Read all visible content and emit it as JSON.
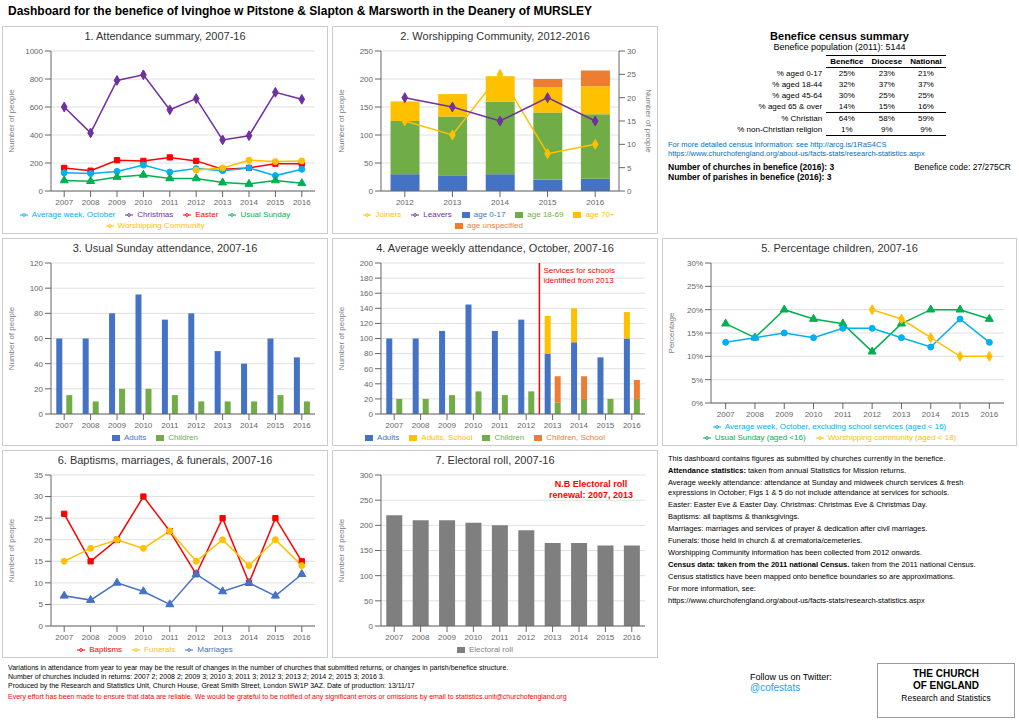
{
  "title": "Dashboard for the benefice of Ivinghoe w Pitstone & Slapton & Marsworth in the Deanery of MURSLEY",
  "chart_data": [
    {
      "type": "line",
      "title": "1. Attendance summary, 2007-16",
      "ylabel": "Number of people",
      "x": [
        2007,
        2008,
        2009,
        2010,
        2011,
        2012,
        2013,
        2014,
        2015,
        2016
      ],
      "xlim": [
        2006.5,
        2016.5
      ],
      "xticks": [
        2007,
        2008,
        2009,
        2010,
        2011,
        2012,
        2013,
        2014,
        2015,
        2016
      ],
      "ylim": [
        0,
        1000
      ],
      "yticks": [
        0,
        200,
        400,
        600,
        800,
        1000
      ],
      "grid": true,
      "legend": "bottom",
      "series": [
        {
          "name": "Christmas",
          "color": "#7030a0",
          "marker": "diamond",
          "values": [
            600,
            415,
            790,
            830,
            580,
            660,
            365,
            395,
            705,
            655
          ]
        },
        {
          "name": "Easter",
          "color": "#ff0000",
          "marker": "square",
          "values": [
            165,
            145,
            220,
            215,
            240,
            215,
            155,
            165,
            195,
            195
          ]
        },
        {
          "name": "Average week, October",
          "color": "#00b0f0",
          "marker": "circle",
          "values": [
            130,
            125,
            140,
            185,
            135,
            160,
            145,
            165,
            110,
            155
          ]
        },
        {
          "name": "Usual Sunday",
          "color": "#00b050",
          "marker": "triangle",
          "values": [
            75,
            70,
            100,
            115,
            90,
            90,
            60,
            50,
            75,
            55
          ]
        },
        {
          "name": "Worshipping Community",
          "color": "#ffc000",
          "marker": "circle",
          "values": [
            null,
            null,
            null,
            null,
            null,
            150,
            165,
            220,
            210,
            215
          ]
        }
      ]
    },
    {
      "type": "bar",
      "title": "2. Worshipping Community, 2012-2016",
      "ylabel": "Number of people",
      "y2label": "Number of people",
      "categories": [
        2012,
        2013,
        2014,
        2015,
        2016
      ],
      "ylim": [
        0,
        250
      ],
      "yticks": [
        0,
        50,
        100,
        150,
        200,
        250
      ],
      "y2lim": [
        0,
        30
      ],
      "y2ticks": [
        0,
        5,
        10,
        15,
        20,
        25,
        30
      ],
      "stacked": true,
      "grid": true,
      "legend": "bottom",
      "series": [
        {
          "name": "age 0-17",
          "color": "#4472c4",
          "values": [
            30,
            28,
            30,
            20,
            22
          ]
        },
        {
          "name": "age 18-69",
          "color": "#70ad47",
          "values": [
            95,
            105,
            130,
            120,
            115
          ]
        },
        {
          "name": "age 70+",
          "color": "#ffc000",
          "values": [
            35,
            40,
            45,
            45,
            50
          ]
        },
        {
          "name": "age unspecified",
          "color": "#ed7d31",
          "values": [
            0,
            0,
            0,
            15,
            28
          ]
        },
        {
          "name": "Joiners",
          "type": "line",
          "axis": "y2",
          "color": "#ffc000",
          "marker": "diamond",
          "values": [
            15,
            12,
            25,
            8,
            10
          ]
        },
        {
          "name": "Leavers",
          "type": "line",
          "axis": "y2",
          "color": "#7030a0",
          "marker": "diamond",
          "values": [
            20,
            18,
            15,
            20,
            15
          ]
        }
      ]
    },
    {
      "type": "bar",
      "title": "3. Usual Sunday attendance, 2007-16",
      "ylabel": "Number of people",
      "categories": [
        2007,
        2008,
        2009,
        2010,
        2011,
        2012,
        2013,
        2014,
        2015,
        2016
      ],
      "ylim": [
        0,
        120
      ],
      "yticks": [
        0,
        20,
        40,
        60,
        80,
        100,
        120
      ],
      "grid": true,
      "legend": "bottom",
      "series": [
        {
          "name": "Adults",
          "color": "#4472c4",
          "values": [
            60,
            60,
            80,
            95,
            75,
            80,
            50,
            40,
            60,
            45
          ]
        },
        {
          "name": "Children",
          "color": "#70ad47",
          "values": [
            15,
            10,
            20,
            20,
            15,
            10,
            10,
            10,
            15,
            10
          ]
        }
      ]
    },
    {
      "type": "bar",
      "title": "4. Average weekly attendance, October, 2007-16",
      "ylabel": "Number of people",
      "categories": [
        2007,
        2008,
        2009,
        2010,
        2011,
        2012,
        2013,
        2014,
        2015,
        2016
      ],
      "ylim": [
        0,
        200
      ],
      "yticks": [
        0,
        20,
        40,
        60,
        80,
        100,
        120,
        140,
        160,
        180,
        200
      ],
      "grid": true,
      "legend": "bottom",
      "annotations": [
        {
          "text": "Services for schools\nidentified from 2013",
          "x": 2013,
          "color": "red"
        }
      ],
      "series": [
        {
          "name": "Adults",
          "color": "#4472c4",
          "values": [
            100,
            100,
            110,
            145,
            110,
            125,
            80,
            95,
            75,
            100
          ]
        },
        {
          "name": "Children",
          "color": "#70ad47",
          "values": [
            20,
            20,
            25,
            30,
            25,
            30,
            15,
            20,
            20,
            20
          ]
        },
        {
          "name": "Adults, School",
          "color": "#ffc000",
          "stacked": "Adults",
          "values": [
            0,
            0,
            0,
            0,
            0,
            0,
            50,
            45,
            0,
            35
          ]
        },
        {
          "name": "Children, School",
          "color": "#ed7d31",
          "stacked": "Children",
          "values": [
            0,
            0,
            0,
            0,
            0,
            0,
            35,
            30,
            0,
            25
          ]
        }
      ]
    },
    {
      "type": "line",
      "title": "5. Percentage children, 2007-16",
      "ylabel": "Percentage",
      "x": [
        2007,
        2008,
        2009,
        2010,
        2011,
        2012,
        2013,
        2014,
        2015,
        2016
      ],
      "xlim": [
        2006.5,
        2016.5
      ],
      "xticks": [
        2007,
        2008,
        2009,
        2010,
        2011,
        2012,
        2013,
        2014,
        2015,
        2016
      ],
      "ylim": [
        0,
        30
      ],
      "yticks": [
        {
          "value": 0,
          "label": "0%"
        },
        {
          "value": 5,
          "label": "5%"
        },
        {
          "value": 10,
          "label": "10%"
        },
        {
          "value": 15,
          "label": "15%"
        },
        {
          "value": 20,
          "label": "20%"
        },
        {
          "value": 25,
          "label": "25%"
        },
        {
          "value": 30,
          "label": "30%"
        }
      ],
      "grid": true,
      "legend": "bottom",
      "series": [
        {
          "name": "Usual Sunday (aged <16)",
          "color": "#00b050",
          "marker": "triangle",
          "values": [
            17,
            14,
            20,
            18,
            17,
            11,
            17,
            20,
            20,
            18
          ]
        },
        {
          "name": "Average week, October, excluding school services (aged < 16)",
          "color": "#00b0f0",
          "marker": "circle",
          "values": [
            13,
            14,
            15,
            14,
            16,
            16,
            14,
            12,
            18,
            13
          ]
        },
        {
          "name": "Worshipping community (aged < 18)",
          "color": "#ffc000",
          "marker": "diamond",
          "values": [
            null,
            null,
            null,
            null,
            null,
            20,
            18,
            14,
            10,
            10
          ]
        }
      ]
    },
    {
      "type": "line",
      "title": "6. Baptisms, marriages, & funerals, 2007-16",
      "ylabel": "Number of people",
      "x": [
        2007,
        2008,
        2009,
        2010,
        2011,
        2012,
        2013,
        2014,
        2015,
        2016
      ],
      "xlim": [
        2006.5,
        2016.5
      ],
      "xticks": [
        2007,
        2008,
        2009,
        2010,
        2011,
        2012,
        2013,
        2014,
        2015,
        2016
      ],
      "ylim": [
        0,
        35
      ],
      "yticks": [
        0,
        5,
        10,
        15,
        20,
        25,
        30,
        35
      ],
      "grid": true,
      "legend": "bottom",
      "series": [
        {
          "name": "Baptisms",
          "color": "#ff0000",
          "marker": "square",
          "values": [
            26,
            15,
            20,
            30,
            22,
            12,
            25,
            10,
            25,
            15
          ]
        },
        {
          "name": "Marriages",
          "color": "#4472c4",
          "marker": "triangle",
          "values": [
            7,
            6,
            10,
            8,
            5,
            12,
            8,
            10,
            7,
            12
          ]
        },
        {
          "name": "Funerals",
          "color": "#ffc000",
          "marker": "circle",
          "values": [
            15,
            18,
            20,
            18,
            22,
            15,
            20,
            14,
            20,
            14
          ]
        }
      ]
    },
    {
      "type": "bar",
      "title": "7. Electoral roll, 2007-16",
      "ylabel": "Number of people",
      "categories": [
        2007,
        2008,
        2009,
        2010,
        2011,
        2012,
        2013,
        2014,
        2015,
        2016
      ],
      "ylim": [
        0,
        300
      ],
      "yticks": [
        0,
        50,
        100,
        150,
        200,
        250,
        300
      ],
      "grid": true,
      "legend": "bottom",
      "annotations": [
        {
          "text": "N.B Electoral roll\nrenewal: 2007, 2013",
          "color": "red"
        }
      ],
      "series": [
        {
          "name": "Electoral roll",
          "color": "#7f7f7f",
          "values": [
            220,
            210,
            210,
            205,
            200,
            190,
            165,
            165,
            160,
            160
          ]
        }
      ]
    }
  ],
  "census": {
    "title": "Benefice census summary",
    "subtitle": "Benefice population (2011): 5144",
    "table": {
      "columns": [
        "Benefice",
        "Diocese",
        "National"
      ],
      "rows": [
        [
          "% aged 0-17",
          "25%",
          "23%",
          "21%"
        ],
        [
          "% aged 18-44",
          "32%",
          "37%",
          "37%"
        ],
        [
          "% aged 45-64",
          "30%",
          "25%",
          "25%"
        ],
        [
          "% aged 65 & over",
          "14%",
          "15%",
          "16%"
        ],
        [
          "% Christian",
          "64%",
          "58%",
          "59%"
        ],
        [
          "% non-Christian religion",
          "1%",
          "9%",
          "9%"
        ]
      ]
    },
    "links": [
      "For more detailed census information: see http://arcg.is/1RaS4CS",
      "https://www.churchofengland.org/about-us/facts-stats/research-statistics.aspx"
    ],
    "facts": [
      "Number of churches in benefice (2016): 3",
      "Number of parishes in benefice (2016): 3"
    ],
    "code": "Benefice code: 27/275CR"
  },
  "notes": [
    "This dashboard contains figures as submitted by churches currently in the benefice.",
    [
      "Attendance statistics:",
      " taken from annual Statistics for Mission returns."
    ],
    "Average weekly attendance: attendance at Sunday and midweek church services & fresh\nexpressions in October; Figs 1 & 5 do not include attendance at services for schools.",
    "Easter: Easter Eve & Easter Day. Christmas: Christmas Eve & Christmas Day.",
    "Baptisms: all baptisms & thanksgivings.",
    "Marriages: marriages and services of prayer & dedication after civil marriages.",
    "Funerals: those held in church & at crematoria/cemeteries.",
    "Worshipping Community information has been collected from 2012 onwards.",
    [
      "Census data: taken from the 2011 national Census.",
      " taken from the 2011 national Census."
    ],
    "Census statistics have been mapped onto benefice boundaries so are approximations.",
    "For more information, see:",
    "https://www.churchofengland.org/about-us/facts-stats/research-statistics.aspx"
  ],
  "footer": [
    "Variations in attendance from year to year may be the result of changes in the number of churches that submitted returns, or changes in parish/benefice structure.\nNumber of churches included in returns: 2007 2; 2008 2; 2009 3; 2010 3; 2011 3; 2012 3; 2013 2; 2014 2; 2015 3; 2016 3.\nProduced by the Research and Statistics Unit, Church House, Great Smith Street, London SW1P 3AZ. Date of production: 13/11/17",
    "Every effort has been made to ensure that data are reliable. We would be grateful to be notified of any significant errors or omissions by email to statistics.unit@churchofengland.org"
  ],
  "twitter": [
    "Follow us on Twitter:",
    "@cofestats"
  ],
  "logo": [
    "THE CHURCH",
    "OF ENGLAND",
    "Research and Statistics"
  ]
}
